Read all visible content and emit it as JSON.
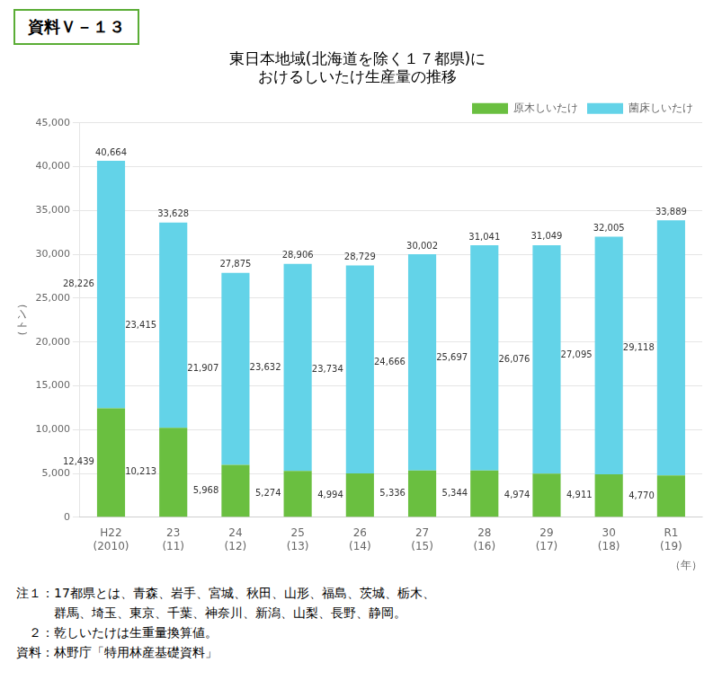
{
  "chart_data": {
    "type": "bar",
    "stacked": true,
    "title": [
      "東日本地域(北海道を除く１７都県)に",
      "おけるしいたけ生産量の推移"
    ],
    "annotations": [
      "資料Ｖ－１３"
    ],
    "ylabel": "（トン）",
    "xlabel": "（年）",
    "categories": [
      "H22\n(2010)",
      "23\n(11)",
      "24\n(12)",
      "25\n(13)",
      "26\n(14)",
      "27\n(15)",
      "28\n(16)",
      "29\n(17)",
      "30\n(18)",
      "R1\n(19)"
    ],
    "series": [
      {
        "name": "原木しいたけ",
        "color": "#6abf40",
        "values": [
          12439,
          10213,
          5968,
          5274,
          4994,
          5336,
          5344,
          4974,
          4911,
          4770
        ],
        "value_labels": [
          "12,439",
          "10,213",
          "5,968",
          "5,274",
          "4,994",
          "5,336",
          "5,344",
          "4,974",
          "4,911",
          "4,770"
        ]
      },
      {
        "name": "菌床しいたけ",
        "color": "#63d3e8",
        "values": [
          28226,
          23415,
          21907,
          23632,
          23734,
          24666,
          25697,
          26076,
          27095,
          29118
        ],
        "value_labels": [
          "28,226",
          "23,415",
          "21,907",
          "23,632",
          "23,734",
          "24,666",
          "25,697",
          "26,076",
          "27,095",
          "29,118"
        ]
      }
    ],
    "totals": [
      40664,
      33628,
      27875,
      28906,
      28729,
      30002,
      31041,
      31049,
      32005,
      33889
    ],
    "total_labels": [
      "40,664",
      "33,628",
      "27,875",
      "28,906",
      "28,729",
      "30,002",
      "31,041",
      "31,049",
      "32,005",
      "33,889"
    ],
    "ylim": [
      0,
      45000
    ],
    "yticks": [
      0,
      {
        "value": 5000,
        "label": "5,000"
      },
      {
        "value": 10000,
        "label": "10,000"
      },
      {
        "value": 15000,
        "label": "15,000"
      },
      {
        "value": 20000,
        "label": "20,000"
      },
      {
        "value": 25000,
        "label": "25,000"
      },
      {
        "value": 30000,
        "label": "30,000"
      },
      {
        "value": 35000,
        "label": "35,000"
      },
      {
        "value": 40000,
        "label": "40,000"
      },
      {
        "value": 45000,
        "label": "45,000"
      }
    ],
    "grid": true,
    "legend": "upper right",
    "data_labels": true,
    "notes": [
      "注１：17都県とは、青森、岩手、宮城、秋田、山形、福島、茨城、栃木、",
      "　　　群馬、埼玉、東京、千葉、神奈川、新潟、山梨、長野、静岡。",
      "　２：乾しいたけは生重量換算値。",
      "資料：林野庁「特用林産基礎資料」"
    ]
  }
}
